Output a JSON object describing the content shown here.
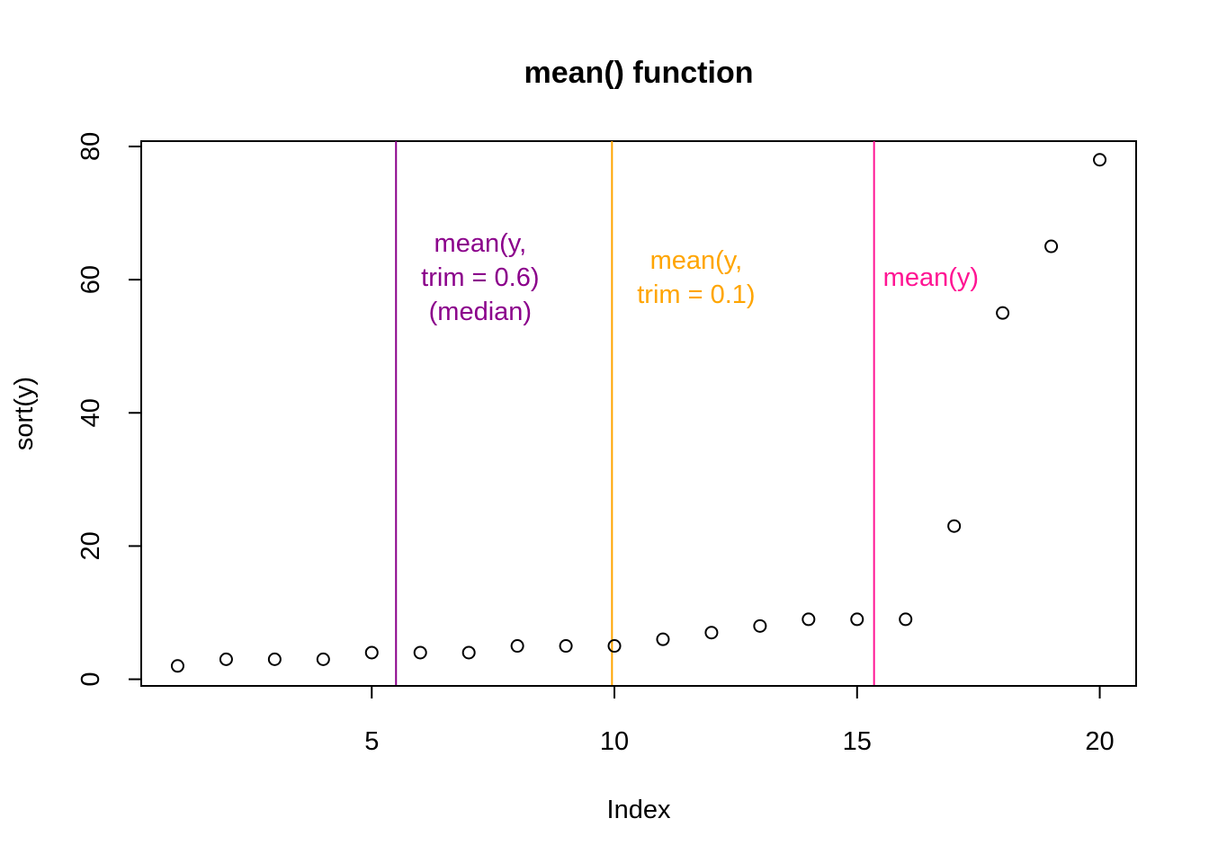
{
  "chart_data": {
    "type": "scatter",
    "title": "mean() function",
    "xlabel": "Index",
    "ylabel": "sort(y)",
    "xlim": [
      0.25,
      20.75
    ],
    "ylim": [
      -1,
      80.8
    ],
    "xticks": [
      5,
      10,
      15,
      20
    ],
    "yticks": [
      0,
      20,
      40,
      60,
      80
    ],
    "grid": false,
    "x": [
      1,
      2,
      3,
      4,
      5,
      6,
      7,
      8,
      9,
      10,
      11,
      12,
      13,
      14,
      15,
      16,
      17,
      18,
      19,
      20
    ],
    "y": [
      2,
      3,
      3,
      3,
      4,
      4,
      4,
      5,
      5,
      5,
      6,
      7,
      8,
      9,
      9,
      9,
      23,
      55,
      65,
      78
    ],
    "vlines": [
      {
        "x": 5.5,
        "color": "#8b008b",
        "label": [
          "mean(y,",
          "trim = 0.6)",
          "(median)"
        ]
      },
      {
        "x": 9.95,
        "color": "#ffa500",
        "label": [
          "mean(y,",
          "trim = 0.1)"
        ]
      },
      {
        "x": 15.35,
        "color": "#ff1493",
        "label": [
          "mean(y)"
        ]
      }
    ]
  }
}
